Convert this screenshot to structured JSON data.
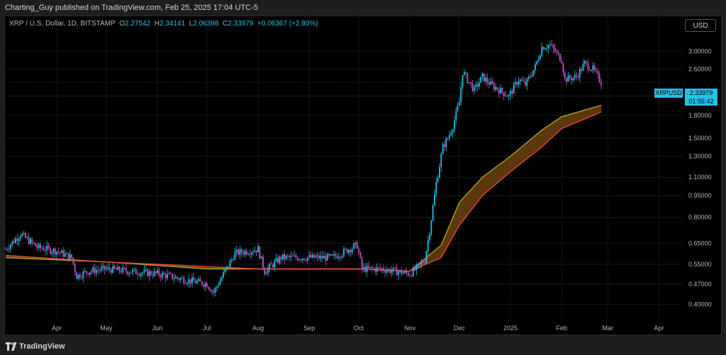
{
  "header": {
    "published": "Charting_Guy published on TradingView.com, Feb 25, 2025 17:04 UTC-5"
  },
  "ohlc": {
    "symbol": "XRP / U.S. Dollar, 1D, BITSTAMP",
    "o_label": "O",
    "o": "2.27542",
    "h_label": "H",
    "h": "2.34141",
    "l_label": "L",
    "l": "2.06398",
    "c_label": "C",
    "c": "2.33979",
    "change": "+0.06367 (+2.80%)"
  },
  "currency_button": "USD",
  "price_tag": {
    "ticker": "XRPUSD",
    "price": "2.33979",
    "countdown": "01:55:42"
  },
  "footer": {
    "brand": "TradingView"
  },
  "colors": {
    "up": "#22c1e8",
    "down": "#c154c1",
    "ema_fast": "#a6a820",
    "ema_slow": "#e8433a",
    "ribbon": "#7a4a10"
  },
  "chart_data": {
    "type": "candlestick",
    "scale": "log",
    "x_range": [
      "2025-02-25 minus 1 year",
      "Apr-2025"
    ],
    "x_ticks": [
      "Apr",
      "May",
      "Jun",
      "Jul",
      "Aug",
      "Sep",
      "Oct",
      "Nov",
      "Dec",
      "2025",
      "Feb",
      "Mar",
      "Apr"
    ],
    "y_ticks": [
      "3.00000",
      "2.60000",
      "2.10000",
      "1.80000",
      "1.50000",
      "1.30000",
      "1.10000",
      "0.95000",
      "0.80000",
      "0.65000",
      "0.55000",
      "0.47000",
      "0.40000"
    ],
    "ylim": [
      0.36,
      3.6
    ],
    "series": [
      {
        "name": "price_close",
        "x": [
          "2024-03-01",
          "2024-03-10",
          "2024-03-20",
          "2024-04-01",
          "2024-04-10",
          "2024-04-13",
          "2024-04-20",
          "2024-05-01",
          "2024-05-15",
          "2024-06-01",
          "2024-06-15",
          "2024-07-01",
          "2024-07-05",
          "2024-07-12",
          "2024-07-18",
          "2024-08-01",
          "2024-08-05",
          "2024-08-15",
          "2024-09-01",
          "2024-09-15",
          "2024-09-30",
          "2024-10-03",
          "2024-10-15",
          "2024-11-01",
          "2024-11-05",
          "2024-11-10",
          "2024-11-13",
          "2024-11-17",
          "2024-11-21",
          "2024-11-24",
          "2024-11-27",
          "2024-12-01",
          "2024-12-03",
          "2024-12-10",
          "2024-12-15",
          "2024-12-20",
          "2024-12-31",
          "2025-01-06",
          "2025-01-10",
          "2025-01-16",
          "2025-01-20",
          "2025-01-25",
          "2025-02-01",
          "2025-02-03",
          "2025-02-10",
          "2025-02-15",
          "2025-02-20",
          "2025-02-25"
        ],
        "values": [
          0.62,
          0.7,
          0.63,
          0.61,
          0.58,
          0.5,
          0.52,
          0.53,
          0.52,
          0.51,
          0.49,
          0.47,
          0.44,
          0.52,
          0.6,
          0.62,
          0.52,
          0.58,
          0.58,
          0.58,
          0.64,
          0.53,
          0.53,
          0.51,
          0.53,
          0.57,
          0.72,
          1.05,
          1.4,
          1.5,
          1.65,
          2.0,
          2.55,
          2.2,
          2.45,
          2.3,
          2.1,
          2.4,
          2.3,
          2.65,
          3.1,
          3.15,
          2.8,
          2.4,
          2.45,
          2.72,
          2.6,
          2.34
        ]
      },
      {
        "name": "ema_fast",
        "x": [
          "2024-03-01",
          "2024-05-01",
          "2024-07-01",
          "2024-08-01",
          "2024-10-01",
          "2024-11-01",
          "2024-11-20",
          "2024-12-01",
          "2024-12-15",
          "2025-01-01",
          "2025-01-20",
          "2025-02-01",
          "2025-02-25"
        ],
        "values": [
          0.58,
          0.56,
          0.53,
          0.53,
          0.53,
          0.52,
          0.64,
          0.9,
          1.1,
          1.3,
          1.6,
          1.78,
          1.95
        ]
      },
      {
        "name": "ema_slow",
        "x": [
          "2024-03-01",
          "2024-05-01",
          "2024-07-01",
          "2024-08-01",
          "2024-10-01",
          "2024-11-01",
          "2024-11-20",
          "2024-12-01",
          "2024-12-15",
          "2025-01-01",
          "2025-01-20",
          "2025-02-01",
          "2025-02-25"
        ],
        "values": [
          0.59,
          0.56,
          0.54,
          0.53,
          0.53,
          0.52,
          0.58,
          0.75,
          0.95,
          1.15,
          1.4,
          1.62,
          1.85
        ]
      }
    ]
  }
}
